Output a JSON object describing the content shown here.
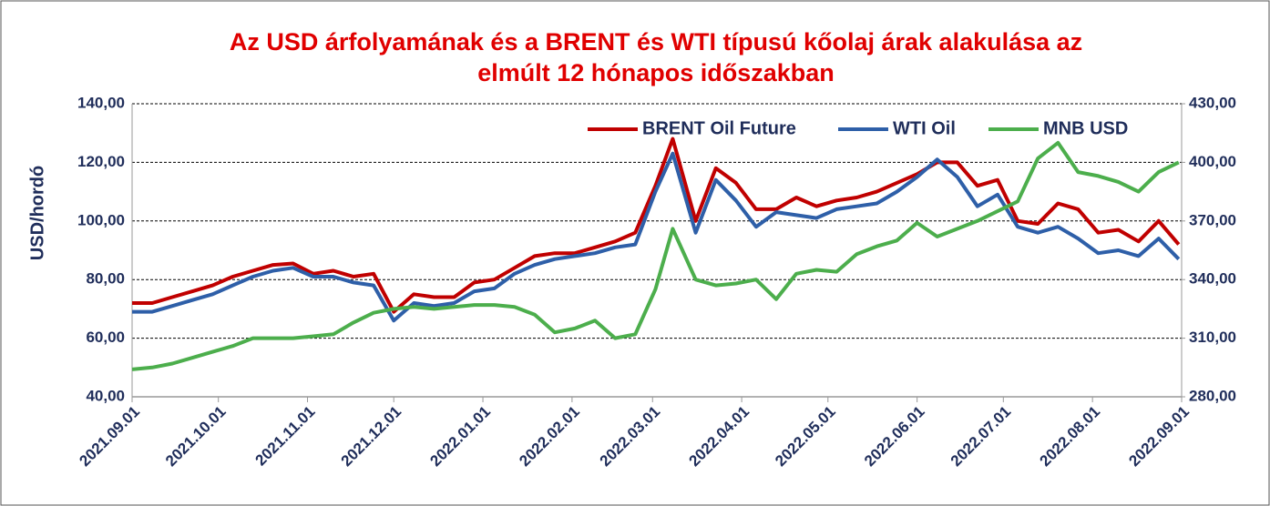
{
  "chart_data": {
    "type": "line",
    "title": "Az USD árfolyamának és a BRENT és WTI  típusú kőolaj árak alakulása az",
    "title_line2": "elmúlt 12 hónapos időszakban",
    "y_label": "USD/hordó",
    "x": [
      "2021.09.01",
      "2021.09.08",
      "2021.09.15",
      "2021.09.22",
      "2021.09.29",
      "2021.10.06",
      "2021.10.13",
      "2021.10.20",
      "2021.10.27",
      "2021.11.03",
      "2021.11.10",
      "2021.11.17",
      "2021.11.24",
      "2021.12.01",
      "2021.12.08",
      "2021.12.15",
      "2021.12.22",
      "2021.12.29",
      "2022.01.05",
      "2022.01.12",
      "2022.01.19",
      "2022.01.26",
      "2022.02.02",
      "2022.02.09",
      "2022.02.16",
      "2022.02.23",
      "2022.03.02",
      "2022.03.08",
      "2022.03.16",
      "2022.03.23",
      "2022.03.30",
      "2022.04.06",
      "2022.04.13",
      "2022.04.20",
      "2022.04.27",
      "2022.05.04",
      "2022.05.11",
      "2022.05.18",
      "2022.05.25",
      "2022.06.01",
      "2022.06.08",
      "2022.06.15",
      "2022.06.22",
      "2022.06.29",
      "2022.07.06",
      "2022.07.13",
      "2022.07.20",
      "2022.07.27",
      "2022.08.03",
      "2022.08.10",
      "2022.08.17",
      "2022.08.24",
      "2022.08.31"
    ],
    "series": [
      {
        "name": "BRENT Oil Future",
        "color": "#c00000",
        "axis": "y",
        "values": [
          72,
          72,
          74,
          76,
          78,
          81,
          83,
          85,
          85.5,
          82,
          83,
          81,
          82,
          69,
          75,
          74,
          74,
          79,
          80,
          84,
          88,
          89,
          89,
          91,
          93,
          96,
          112,
          128,
          100,
          118,
          113,
          104,
          104,
          108,
          105,
          107,
          108,
          110,
          113,
          116,
          120,
          120,
          112,
          114,
          100,
          99,
          106,
          104,
          96,
          97,
          93,
          100,
          92
        ]
      },
      {
        "name": "WTI Oil",
        "color": "#2e5fa8",
        "axis": "y",
        "values": [
          69,
          69,
          71,
          73,
          75,
          78,
          81,
          83,
          84,
          81,
          81,
          79,
          78,
          66,
          72,
          71,
          72,
          76,
          77,
          82,
          85,
          87,
          88,
          89,
          91,
          92,
          110,
          123,
          96,
          114,
          107,
          98,
          103,
          102,
          101,
          104,
          105,
          106,
          110,
          115,
          121,
          115,
          105,
          109,
          98,
          96,
          98,
          94,
          89,
          90,
          88,
          94,
          87
        ]
      },
      {
        "name": "MNB USD",
        "color": "#4cae4c",
        "axis": "y2",
        "values": [
          294,
          295,
          297,
          300,
          303,
          306,
          310,
          310,
          310,
          311,
          312,
          318,
          323,
          325,
          326,
          325,
          326,
          327,
          327,
          326,
          322,
          313,
          315,
          319,
          310,
          312,
          335,
          366,
          340,
          337,
          338,
          340,
          330,
          343,
          345,
          344,
          353,
          357,
          360,
          369,
          362,
          366,
          370,
          375,
          380,
          402,
          410,
          395,
          393,
          390,
          385,
          395,
          400
        ]
      }
    ],
    "xlim": [
      "2021.09.01",
      "2022.09.01"
    ],
    "xticks": [
      "2021.09.01",
      "2021.10.01",
      "2021.11.01",
      "2021.12.01",
      "2022.01.01",
      "2022.02.01",
      "2022.03.01",
      "2022.04.01",
      "2022.05.01",
      "2022.06.01",
      "2022.07.01",
      "2022.08.01",
      "2022.09.01"
    ],
    "ylim": [
      40,
      140
    ],
    "yticks": [
      {
        "value": 40,
        "label": "40,00"
      },
      {
        "value": 60,
        "label": "60,00"
      },
      {
        "value": 80,
        "label": "80,00"
      },
      {
        "value": 100,
        "label": "100,00"
      },
      {
        "value": 120,
        "label": "120,00"
      },
      {
        "value": 140,
        "label": "140,00"
      }
    ],
    "y2lim": [
      280,
      430
    ],
    "y2ticks": [
      {
        "value": 280,
        "label": "280,00"
      },
      {
        "value": 310,
        "label": "310,00"
      },
      {
        "value": 340,
        "label": "340,00"
      },
      {
        "value": 370,
        "label": "370,00"
      },
      {
        "value": 400,
        "label": "400,00"
      },
      {
        "value": 430,
        "label": "430,00"
      }
    ],
    "grid": true,
    "legend": "top"
  }
}
